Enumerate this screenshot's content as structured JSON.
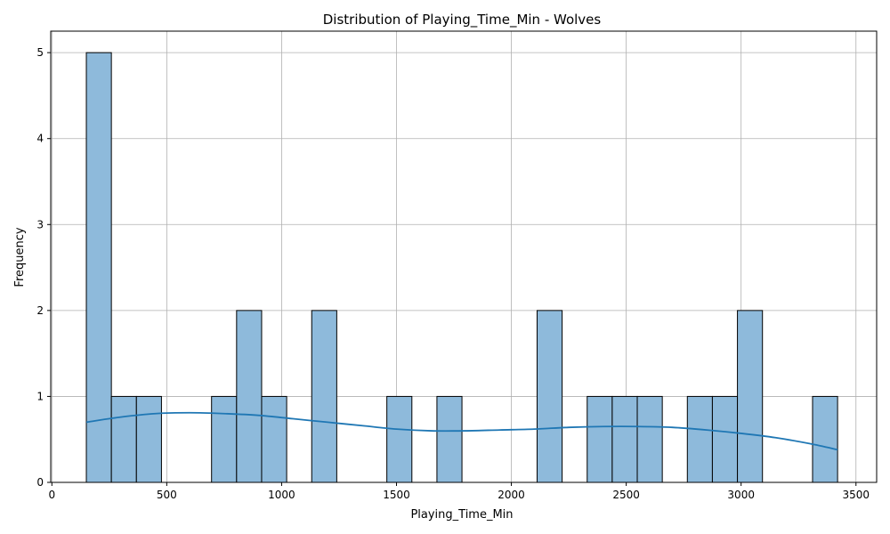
{
  "chart_data": {
    "type": "bar",
    "title": "Distribution of Playing_Time_Min - Wolves",
    "xlabel": "Playing_Time_Min",
    "ylabel": "Frequency",
    "xlim": [
      -5,
      3590
    ],
    "ylim": [
      0,
      5.25
    ],
    "xticks": [
      0,
      500,
      1000,
      1500,
      2000,
      2500,
      3000,
      3500
    ],
    "yticks": [
      0,
      1,
      2,
      3,
      4,
      5
    ],
    "grid": true,
    "bins": [
      {
        "x0": 150,
        "x1": 259,
        "count": 5
      },
      {
        "x0": 259,
        "x1": 368,
        "count": 1
      },
      {
        "x0": 368,
        "x1": 477,
        "count": 1
      },
      {
        "x0": 477,
        "x1": 586,
        "count": 0
      },
      {
        "x0": 586,
        "x1": 695,
        "count": 0
      },
      {
        "x0": 695,
        "x1": 804,
        "count": 1
      },
      {
        "x0": 804,
        "x1": 913,
        "count": 2
      },
      {
        "x0": 913,
        "x1": 1022,
        "count": 1
      },
      {
        "x0": 1022,
        "x1": 1131,
        "count": 0
      },
      {
        "x0": 1131,
        "x1": 1240,
        "count": 2
      },
      {
        "x0": 1240,
        "x1": 1349,
        "count": 0
      },
      {
        "x0": 1349,
        "x1": 1458,
        "count": 0
      },
      {
        "x0": 1458,
        "x1": 1567,
        "count": 1
      },
      {
        "x0": 1567,
        "x1": 1676,
        "count": 0
      },
      {
        "x0": 1676,
        "x1": 1785,
        "count": 1
      },
      {
        "x0": 1785,
        "x1": 1894,
        "count": 0
      },
      {
        "x0": 1894,
        "x1": 2003,
        "count": 0
      },
      {
        "x0": 2003,
        "x1": 2112,
        "count": 0
      },
      {
        "x0": 2112,
        "x1": 2221,
        "count": 2
      },
      {
        "x0": 2221,
        "x1": 2330,
        "count": 0
      },
      {
        "x0": 2330,
        "x1": 2439,
        "count": 1
      },
      {
        "x0": 2439,
        "x1": 2548,
        "count": 1
      },
      {
        "x0": 2548,
        "x1": 2657,
        "count": 1
      },
      {
        "x0": 2657,
        "x1": 2766,
        "count": 0
      },
      {
        "x0": 2766,
        "x1": 2875,
        "count": 1
      },
      {
        "x0": 2875,
        "x1": 2984,
        "count": 1
      },
      {
        "x0": 2984,
        "x1": 3093,
        "count": 2
      },
      {
        "x0": 3093,
        "x1": 3202,
        "count": 0
      },
      {
        "x0": 3202,
        "x1": 3311,
        "count": 0
      },
      {
        "x0": 3311,
        "x1": 3420,
        "count": 1
      }
    ],
    "kde": {
      "x": [
        150,
        300,
        450,
        600,
        750,
        900,
        1050,
        1200,
        1350,
        1500,
        1650,
        1800,
        1950,
        2100,
        2250,
        2400,
        2550,
        2700,
        2850,
        3000,
        3150,
        3300,
        3420
      ],
      "y": [
        0.7,
        0.76,
        0.8,
        0.81,
        0.8,
        0.78,
        0.74,
        0.7,
        0.66,
        0.62,
        0.6,
        0.6,
        0.61,
        0.62,
        0.64,
        0.65,
        0.65,
        0.64,
        0.61,
        0.57,
        0.52,
        0.45,
        0.38
      ]
    },
    "bar_color": "#8ebadb",
    "bar_edge_color": "#000000",
    "kde_color": "#1f77b4",
    "grid_color": "#b0b0b0"
  }
}
